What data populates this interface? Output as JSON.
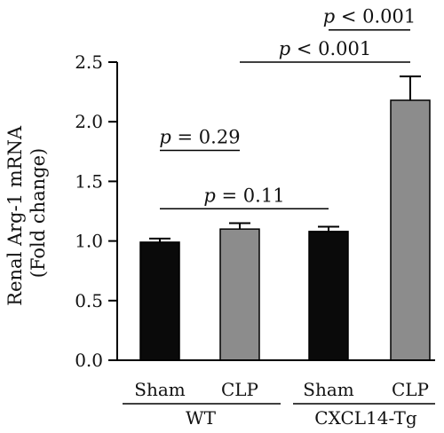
{
  "chart_data": {
    "type": "bar",
    "title": "",
    "ylabel_line1": "Renal Arg-1 mRNA",
    "ylabel_line2": "(Fold change)",
    "ylim": [
      0,
      2.5
    ],
    "yticks": [
      "0.0",
      "0.5",
      "1.0",
      "1.5",
      "2.0",
      "2.5"
    ],
    "bars": [
      {
        "label": "Sham",
        "group": "WT",
        "value": 0.99,
        "error": 0.03,
        "color": "#0a0a0a"
      },
      {
        "label": "CLP",
        "group": "WT",
        "value": 1.1,
        "error": 0.05,
        "color": "#8c8c8c"
      },
      {
        "label": "Sham",
        "group": "CXCL14-Tg",
        "value": 1.08,
        "error": 0.04,
        "color": "#0a0a0a"
      },
      {
        "label": "CLP",
        "group": "CXCL14-Tg",
        "value": 2.18,
        "error": 0.2,
        "color": "#8c8c8c"
      }
    ],
    "groups": [
      "WT",
      "CXCL14-Tg"
    ],
    "annotations": [
      {
        "from": 0,
        "to": 1,
        "text": "p = 0.29",
        "y": 1.76
      },
      {
        "from": 0,
        "to": 2,
        "text": "p = 0.11",
        "y": 1.27
      },
      {
        "from": 1,
        "to": 3,
        "text": "p < 0.001",
        "y": 2.5
      },
      {
        "from": 2,
        "to": 3,
        "text": "p < 0.001",
        "y": 2.77
      }
    ]
  }
}
